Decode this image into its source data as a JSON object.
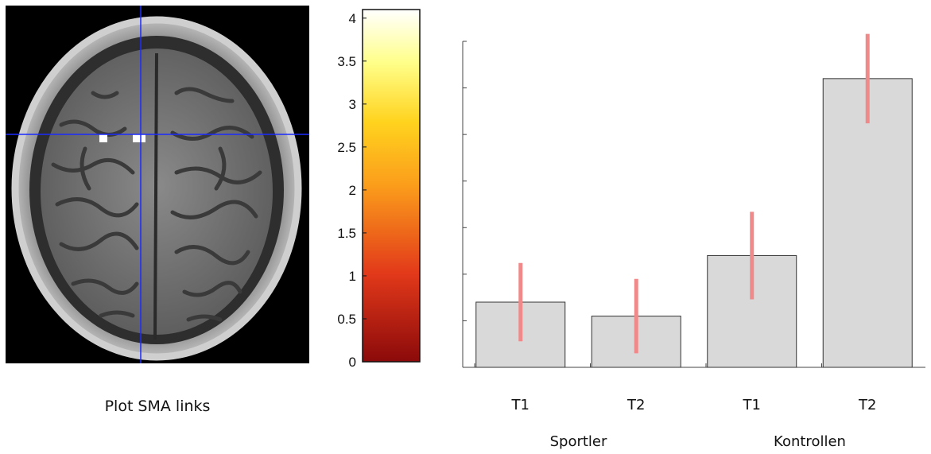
{
  "brain_panel": {
    "caption": "Plot SMA links",
    "crosshair_color": "#1a2bff"
  },
  "colorbar": {
    "colormap": "hot",
    "range": [
      0,
      4.1
    ],
    "ticks": [
      "0",
      "0.5",
      "1",
      "1.5",
      "2",
      "2.5",
      "3",
      "3.5",
      "4"
    ],
    "tick_values": [
      0,
      0.5,
      1,
      1.5,
      2,
      2.5,
      3,
      3.5,
      4
    ]
  },
  "chart_data": {
    "type": "bar",
    "categories": [
      "T1",
      "T2",
      "T1",
      "T2"
    ],
    "groups": [
      "Sportler",
      "Kontrollen"
    ],
    "group_membership": [
      0,
      0,
      1,
      1
    ],
    "values": [
      0.7,
      0.55,
      1.2,
      3.1
    ],
    "error_bars": [
      0.42,
      0.4,
      0.47,
      0.48
    ],
    "ylim": [
      0,
      3.5
    ],
    "y_ticks": [
      0.5,
      1,
      1.5,
      2,
      2.5,
      3,
      3.5
    ],
    "bar_color": "#d9d9d9",
    "error_color": "#f08a8a",
    "title": "",
    "xlabel": "",
    "ylabel": ""
  }
}
